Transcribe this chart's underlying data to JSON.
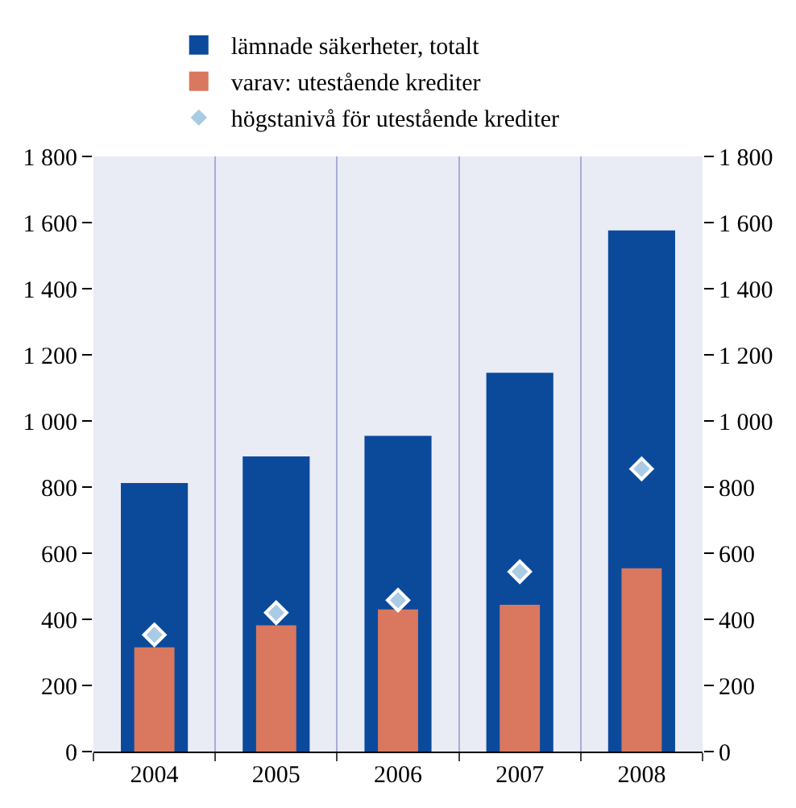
{
  "chart_data": {
    "type": "bar",
    "categories": [
      "2004",
      "2005",
      "2006",
      "2007",
      "2008"
    ],
    "series": [
      {
        "name": "lämnade säkerheter, totalt",
        "color": "#0b4a9b",
        "values": [
          812,
          893,
          955,
          1146,
          1576
        ]
      },
      {
        "name": "varav: utestående krediter",
        "color": "#d9785f",
        "values": [
          315,
          382,
          430,
          444,
          554
        ]
      },
      {
        "name": "högstanivå för utestående krediter",
        "type": "scatter",
        "marker": "diamond",
        "color": "#a9cbe3",
        "values": [
          353,
          420,
          458,
          544,
          855
        ]
      }
    ],
    "ylim": [
      0,
      1800
    ],
    "yticks": [
      0,
      200,
      400,
      600,
      800,
      {
        "value": 1000,
        "label": "1 000"
      },
      {
        "value": 1200,
        "label": "1 200"
      },
      {
        "value": 1400,
        "label": "1 400"
      },
      {
        "value": 1600,
        "label": "1 600"
      },
      {
        "value": 1800,
        "label": "1 800"
      }
    ],
    "y2lim": [
      0,
      1800
    ],
    "y2ticks": [
      0,
      200,
      400,
      600,
      800,
      {
        "value": 1000,
        "label": "1 000"
      },
      {
        "value": 1200,
        "label": "1 200"
      },
      {
        "value": 1400,
        "label": "1 400"
      },
      {
        "value": 1600,
        "label": "1 600"
      },
      {
        "value": 1800,
        "label": "1 800"
      }
    ],
    "grid": "x",
    "legend": "top left"
  }
}
